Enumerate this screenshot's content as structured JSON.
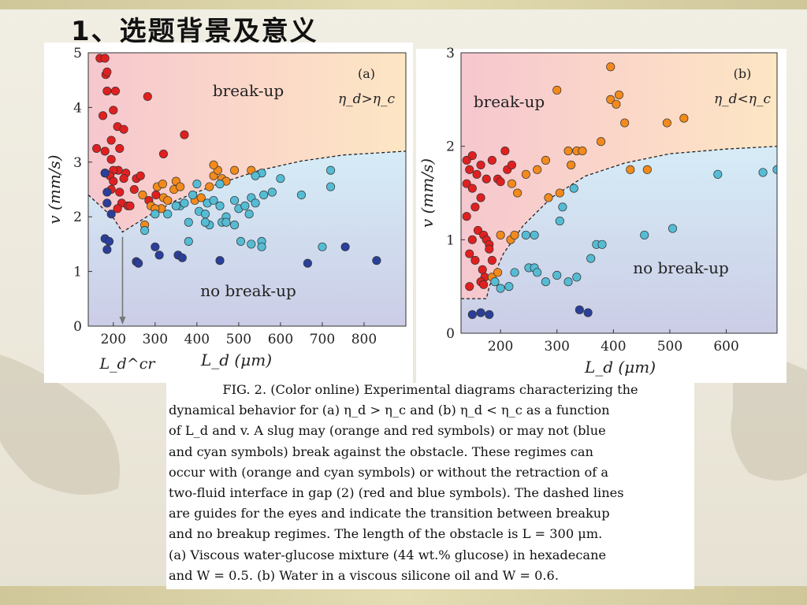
{
  "slide": {
    "title": "1、选题背景及意义"
  },
  "caption": {
    "lines": [
      "FIG. 2. (Color online) Experimental diagrams characterizing the",
      "dynamical behavior for (a) η_d > η_c and (b) η_d < η_c as a function",
      "of L_d and v. A slug may (orange and red symbols) or may not (blue",
      "and cyan symbols) break against the obstacle. These regimes can",
      "occur with (orange and cyan symbols) or without the retraction of a",
      "two-fluid interface in gap (2) (red and blue symbols). The dashed lines",
      "are guides for the eyes and indicate the transition between breakup",
      "and no breakup regimes. The length of the obstacle is L = 300 μm.",
      "(a) Viscous water-glucose mixture (44 wt.% glucose) in hexadecane",
      "and W = 0.5. (b) Water in a viscous silicone oil and W = 0.6."
    ]
  },
  "colors": {
    "red": "#e02020",
    "orange": "#f28a1c",
    "cyan": "#55bcd4",
    "blue": "#2a3f9a",
    "region_breakup_top": "#fde6c4",
    "region_breakup_left": "#f6c7cf",
    "region_nobreakup_top": "#d6ecf7",
    "region_nobreakup_bottom": "#cbcde6"
  },
  "chart_data": [
    {
      "type": "scatter",
      "panel_label": "(a)",
      "condition": "η_d>η_c",
      "region_labels": {
        "upper": "break-up",
        "lower": "no break-up"
      },
      "xlabel": "L_d (μm)",
      "ylabel": "v (mm/s)",
      "xlim": [
        140,
        900
      ],
      "ylim": [
        0,
        5
      ],
      "xticks": [
        200,
        300,
        400,
        500,
        600,
        700,
        800
      ],
      "yticks": [
        0,
        1,
        2,
        3,
        4,
        5
      ],
      "annotation": "L_d^cr",
      "annotation_x": 222,
      "boundary": [
        [
          140,
          2.4
        ],
        [
          200,
          1.98
        ],
        [
          222,
          1.72
        ],
        [
          280,
          2.0
        ],
        [
          350,
          2.3
        ],
        [
          450,
          2.6
        ],
        [
          550,
          2.85
        ],
        [
          650,
          3.02
        ],
        [
          750,
          3.13
        ],
        [
          900,
          3.2
        ]
      ],
      "series": [
        {
          "color_key": "red",
          "points": [
            [
              168,
              4.9
            ],
            [
              180,
              4.9
            ],
            [
              182,
              4.6
            ],
            [
              185,
              4.65
            ],
            [
              185,
              4.3
            ],
            [
              205,
              4.3
            ],
            [
              200,
              3.95
            ],
            [
              175,
              3.85
            ],
            [
              210,
              3.65
            ],
            [
              225,
              3.6
            ],
            [
              195,
              3.4
            ],
            [
              215,
              3.25
            ],
            [
              160,
              3.25
            ],
            [
              180,
              3.2
            ],
            [
              282,
              4.2
            ],
            [
              370,
              3.5
            ],
            [
              320,
              3.15
            ],
            [
              195,
              3.05
            ],
            [
              212,
              2.85
            ],
            [
              230,
              2.8
            ],
            [
              200,
              2.85
            ],
            [
              180,
              2.8
            ],
            [
              192,
              2.75
            ],
            [
              200,
              2.65
            ],
            [
              225,
              2.7
            ],
            [
              255,
              2.7
            ],
            [
              265,
              2.75
            ],
            [
              195,
              2.5
            ],
            [
              215,
              2.45
            ],
            [
              250,
              2.5
            ],
            [
              285,
              2.3
            ],
            [
              302,
              2.4
            ],
            [
              220,
              2.25
            ],
            [
              235,
              2.2
            ],
            [
              240,
              2.2
            ],
            [
              210,
              2.15
            ]
          ]
        },
        {
          "color_key": "orange",
          "points": [
            [
              270,
              2.4
            ],
            [
              305,
              2.55
            ],
            [
              318,
              2.6
            ],
            [
              320,
              2.35
            ],
            [
              330,
              2.3
            ],
            [
              350,
              2.65
            ],
            [
              290,
              2.2
            ],
            [
              315,
              2.15
            ],
            [
              345,
              2.5
            ],
            [
              360,
              2.55
            ],
            [
              395,
              2.3
            ],
            [
              410,
              2.35
            ],
            [
              430,
              2.55
            ],
            [
              440,
              2.75
            ],
            [
              450,
              2.85
            ],
            [
              460,
              2.7
            ],
            [
              470,
              2.65
            ],
            [
              490,
              2.85
            ],
            [
              530,
              2.85
            ],
            [
              300,
              2.15
            ],
            [
              275,
              1.85
            ],
            [
              440,
              2.95
            ]
          ]
        },
        {
          "color_key": "cyan",
          "points": [
            [
              330,
              2.05
            ],
            [
              360,
              2.2
            ],
            [
              370,
              2.25
            ],
            [
              390,
              2.4
            ],
            [
              405,
              2.1
            ],
            [
              420,
              2.05
            ],
            [
              425,
              2.25
            ],
            [
              440,
              2.3
            ],
            [
              455,
              2.2
            ],
            [
              470,
              2.0
            ],
            [
              490,
              2.3
            ],
            [
              500,
              2.15
            ],
            [
              515,
              2.2
            ],
            [
              525,
              2.05
            ],
            [
              530,
              2.35
            ],
            [
              540,
              2.25
            ],
            [
              555,
              2.8
            ],
            [
              560,
              2.4
            ],
            [
              580,
              2.45
            ],
            [
              600,
              2.7
            ],
            [
              650,
              2.4
            ],
            [
              720,
              2.85
            ],
            [
              720,
              2.55
            ],
            [
              380,
              1.9
            ],
            [
              430,
              1.85
            ],
            [
              460,
              1.9
            ],
            [
              470,
              1.9
            ],
            [
              490,
              1.85
            ],
            [
              505,
              1.55
            ],
            [
              530,
              1.5
            ],
            [
              555,
              1.55
            ],
            [
              555,
              1.45
            ],
            [
              380,
              1.55
            ],
            [
              420,
              1.9
            ],
            [
              275,
              1.75
            ],
            [
              300,
              2.05
            ],
            [
              350,
              2.2
            ],
            [
              400,
              2.6
            ],
            [
              455,
              2.6
            ],
            [
              540,
              2.75
            ],
            [
              700,
              1.45
            ]
          ]
        },
        {
          "color_key": "blue",
          "points": [
            [
              180,
              2.8
            ],
            [
              185,
              2.45
            ],
            [
              185,
              2.25
            ],
            [
              195,
              2.05
            ],
            [
              180,
              1.6
            ],
            [
              190,
              1.55
            ],
            [
              185,
              1.4
            ],
            [
              300,
              1.45
            ],
            [
              310,
              1.3
            ],
            [
              355,
              1.3
            ],
            [
              365,
              1.25
            ],
            [
              455,
              1.2
            ],
            [
              255,
              1.18
            ],
            [
              260,
              1.15
            ],
            [
              665,
              1.15
            ],
            [
              755,
              1.45
            ],
            [
              830,
              1.2
            ]
          ]
        }
      ]
    },
    {
      "type": "scatter",
      "panel_label": "(b)",
      "condition": "η_d<η_c",
      "region_labels": {
        "upper": "break-up",
        "lower": "no break-up"
      },
      "xlabel": "L_d (μm)",
      "ylabel": "v (mm/s)",
      "xlim": [
        130,
        690
      ],
      "ylim": [
        0,
        3
      ],
      "xticks": [
        200,
        300,
        400,
        500,
        600
      ],
      "yticks": [
        0,
        1,
        2,
        3
      ],
      "boundary": [
        [
          130,
          0.37
        ],
        [
          175,
          0.37
        ],
        [
          180,
          0.5
        ],
        [
          205,
          0.85
        ],
        [
          240,
          1.15
        ],
        [
          290,
          1.45
        ],
        [
          350,
          1.68
        ],
        [
          420,
          1.82
        ],
        [
          500,
          1.92
        ],
        [
          600,
          1.97
        ],
        [
          690,
          2.0
        ]
      ],
      "series": [
        {
          "color_key": "red",
          "points": [
            [
              140,
              1.85
            ],
            [
              145,
              1.75
            ],
            [
              150,
              1.9
            ],
            [
              158,
              1.7
            ],
            [
              165,
              1.8
            ],
            [
              175,
              1.65
            ],
            [
              185,
              1.85
            ],
            [
              195,
              1.65
            ],
            [
              208,
              1.95
            ],
            [
              212,
              1.75
            ],
            [
              220,
              1.8
            ],
            [
              140,
              1.6
            ],
            [
              150,
              1.55
            ],
            [
              165,
              1.45
            ],
            [
              155,
              1.35
            ],
            [
              140,
              1.25
            ],
            [
              160,
              1.1
            ],
            [
              170,
              1.05
            ],
            [
              175,
              1.0
            ],
            [
              180,
              0.95
            ],
            [
              150,
              1.0
            ],
            [
              145,
              0.85
            ],
            [
              155,
              0.78
            ],
            [
              168,
              0.68
            ],
            [
              172,
              0.6
            ],
            [
              165,
              0.55
            ],
            [
              180,
              0.9
            ],
            [
              145,
              0.5
            ],
            [
              170,
              0.52
            ],
            [
              185,
              0.78
            ],
            [
              200,
              1.62
            ]
          ]
        },
        {
          "color_key": "orange",
          "points": [
            [
              185,
              0.6
            ],
            [
              195,
              0.65
            ],
            [
              200,
              1.05
            ],
            [
              218,
              1.0
            ],
            [
              225,
              1.05
            ],
            [
              230,
              1.5
            ],
            [
              220,
              1.6
            ],
            [
              245,
              1.7
            ],
            [
              265,
              1.75
            ],
            [
              280,
              1.85
            ],
            [
              300,
              2.6
            ],
            [
              305,
              1.5
            ],
            [
              320,
              1.95
            ],
            [
              325,
              1.8
            ],
            [
              335,
              1.95
            ],
            [
              345,
              1.95
            ],
            [
              378,
              2.05
            ],
            [
              395,
              2.5
            ],
            [
              405,
              2.45
            ],
            [
              410,
              2.55
            ],
            [
              420,
              2.25
            ],
            [
              430,
              1.75
            ],
            [
              460,
              1.75
            ],
            [
              395,
              2.85
            ],
            [
              495,
              2.25
            ],
            [
              525,
              2.3
            ],
            [
              285,
              1.45
            ]
          ]
        },
        {
          "color_key": "cyan",
          "points": [
            [
              190,
              0.55
            ],
            [
              200,
              0.48
            ],
            [
              215,
              0.5
            ],
            [
              225,
              0.65
            ],
            [
              250,
              0.7
            ],
            [
              260,
              0.7
            ],
            [
              265,
              0.65
            ],
            [
              280,
              0.55
            ],
            [
              300,
              0.62
            ],
            [
              320,
              0.55
            ],
            [
              335,
              0.6
            ],
            [
              360,
              0.8
            ],
            [
              245,
              1.05
            ],
            [
              260,
              1.05
            ],
            [
              305,
              1.2
            ],
            [
              310,
              1.35
            ],
            [
              330,
              1.55
            ],
            [
              370,
              0.95
            ],
            [
              380,
              0.95
            ],
            [
              455,
              1.05
            ],
            [
              505,
              1.12
            ],
            [
              585,
              1.7
            ],
            [
              665,
              1.72
            ],
            [
              690,
              1.75
            ]
          ]
        },
        {
          "color_key": "blue",
          "points": [
            [
              150,
              0.2
            ],
            [
              165,
              0.22
            ],
            [
              180,
              0.2
            ],
            [
              340,
              0.25
            ],
            [
              355,
              0.22
            ]
          ]
        }
      ]
    }
  ]
}
